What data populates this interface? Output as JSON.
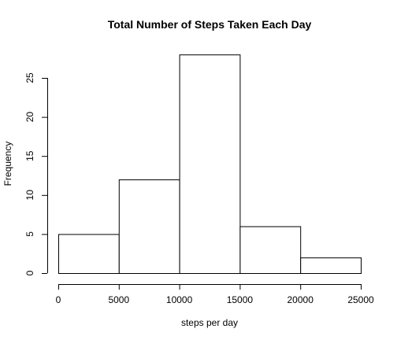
{
  "chart_data": {
    "type": "bar",
    "title": "Total Number of Steps Taken Each Day",
    "xlabel": "steps per day",
    "ylabel": "Frequency",
    "bins": [
      {
        "from": 0,
        "to": 5000,
        "count": 5
      },
      {
        "from": 5000,
        "to": 10000,
        "count": 12
      },
      {
        "from": 10000,
        "to": 15000,
        "count": 28
      },
      {
        "from": 15000,
        "to": 20000,
        "count": 6
      },
      {
        "from": 20000,
        "to": 25000,
        "count": 2
      }
    ],
    "xlim": [
      0,
      25000
    ],
    "ylim": [
      0,
      28
    ],
    "x_ticks": [
      "0",
      "5000",
      "10000",
      "15000",
      "20000",
      "25000"
    ],
    "y_ticks": [
      "0",
      "5",
      "10",
      "15",
      "20",
      "25"
    ],
    "grid": false,
    "bar_fill": "#ffffff",
    "bar_stroke": "#000000"
  }
}
